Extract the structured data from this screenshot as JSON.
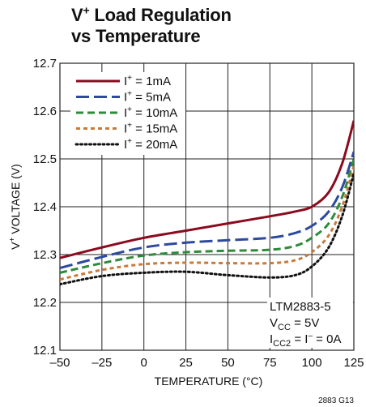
{
  "title": {
    "line1_pre": "V",
    "line1_sup": "+",
    "line1_post": " Load Regulation",
    "line2": "vs Temperature"
  },
  "chart_data": {
    "type": "line",
    "title": "V+ Load Regulation vs Temperature",
    "xlabel": "TEMPERATURE (°C)",
    "ylabel": "V+ VOLTAGE (V)",
    "xlim": [
      -50,
      125
    ],
    "ylim": [
      12.1,
      12.7
    ],
    "xticks": [
      "–50",
      "–25",
      "0",
      "25",
      "50",
      "75",
      "100",
      "125"
    ],
    "xtick_values": [
      -50,
      -25,
      0,
      25,
      50,
      75,
      100,
      125
    ],
    "yticks": [
      "12.1",
      "12.2",
      "12.3",
      "12.4",
      "12.5",
      "12.6",
      "12.7"
    ],
    "ytick_values": [
      12.1,
      12.2,
      12.3,
      12.4,
      12.5,
      12.6,
      12.7
    ],
    "grid": true,
    "legend_position": "top-left",
    "series": [
      {
        "name": "I+ = 1mA",
        "label_pre": "I",
        "label_sup": "+",
        "label_post": " = 1mA",
        "color": "#8b0a1e",
        "dash": "solid",
        "x": [
          -50,
          -25,
          0,
          25,
          50,
          75,
          90,
          100,
          110,
          118,
          125
        ],
        "y": [
          12.293,
          12.315,
          12.335,
          12.35,
          12.365,
          12.38,
          12.39,
          12.4,
          12.43,
          12.49,
          12.58
        ]
      },
      {
        "name": "I+ = 5mA",
        "label_pre": "I",
        "label_sup": "+",
        "label_post": " = 5mA",
        "color": "#2e4a9e",
        "dash": "long-dash",
        "x": [
          -50,
          -25,
          0,
          25,
          50,
          75,
          90,
          100,
          110,
          118,
          125
        ],
        "y": [
          12.272,
          12.295,
          12.315,
          12.325,
          12.33,
          12.335,
          12.345,
          12.36,
          12.39,
          12.44,
          12.515
        ]
      },
      {
        "name": "I+ = 10mA",
        "label_pre": "I",
        "label_sup": "+",
        "label_post": " = 10mA",
        "color": "#2e8b3a",
        "dash": "dash",
        "x": [
          -50,
          -25,
          0,
          25,
          50,
          75,
          90,
          100,
          110,
          118,
          125
        ],
        "y": [
          12.262,
          12.282,
          12.298,
          12.305,
          12.308,
          12.31,
          12.318,
          12.335,
          12.365,
          12.42,
          12.5
        ]
      },
      {
        "name": "I+ = 15mA",
        "label_pre": "I",
        "label_sup": "+",
        "label_post": " = 15mA",
        "color": "#c87a3a",
        "dash": "short-dash",
        "x": [
          -50,
          -25,
          0,
          25,
          50,
          75,
          90,
          100,
          110,
          118,
          125
        ],
        "y": [
          12.248,
          12.268,
          12.28,
          12.283,
          12.282,
          12.282,
          12.288,
          12.305,
          12.34,
          12.4,
          12.485
        ]
      },
      {
        "name": "I+ = 20mA",
        "label_pre": "I",
        "label_sup": "+",
        "label_post": " = 20mA",
        "color": "#111111",
        "dash": "dot",
        "x": [
          -50,
          -25,
          0,
          25,
          50,
          75,
          90,
          100,
          110,
          118,
          125
        ],
        "y": [
          12.238,
          12.255,
          12.262,
          12.264,
          12.257,
          12.252,
          12.257,
          12.275,
          12.315,
          12.38,
          12.47
        ]
      }
    ],
    "annotation": {
      "line1": "LTM2883-5",
      "line2_pre": "V",
      "line2_sub": "CC",
      "line2_post": " = 5V",
      "line3_pre": "I",
      "line3_sub": "CC2",
      "line3_mid": " = I",
      "line3_sup": "–",
      "line3_post": " = 0A"
    },
    "figure_id": "2883 G13"
  }
}
